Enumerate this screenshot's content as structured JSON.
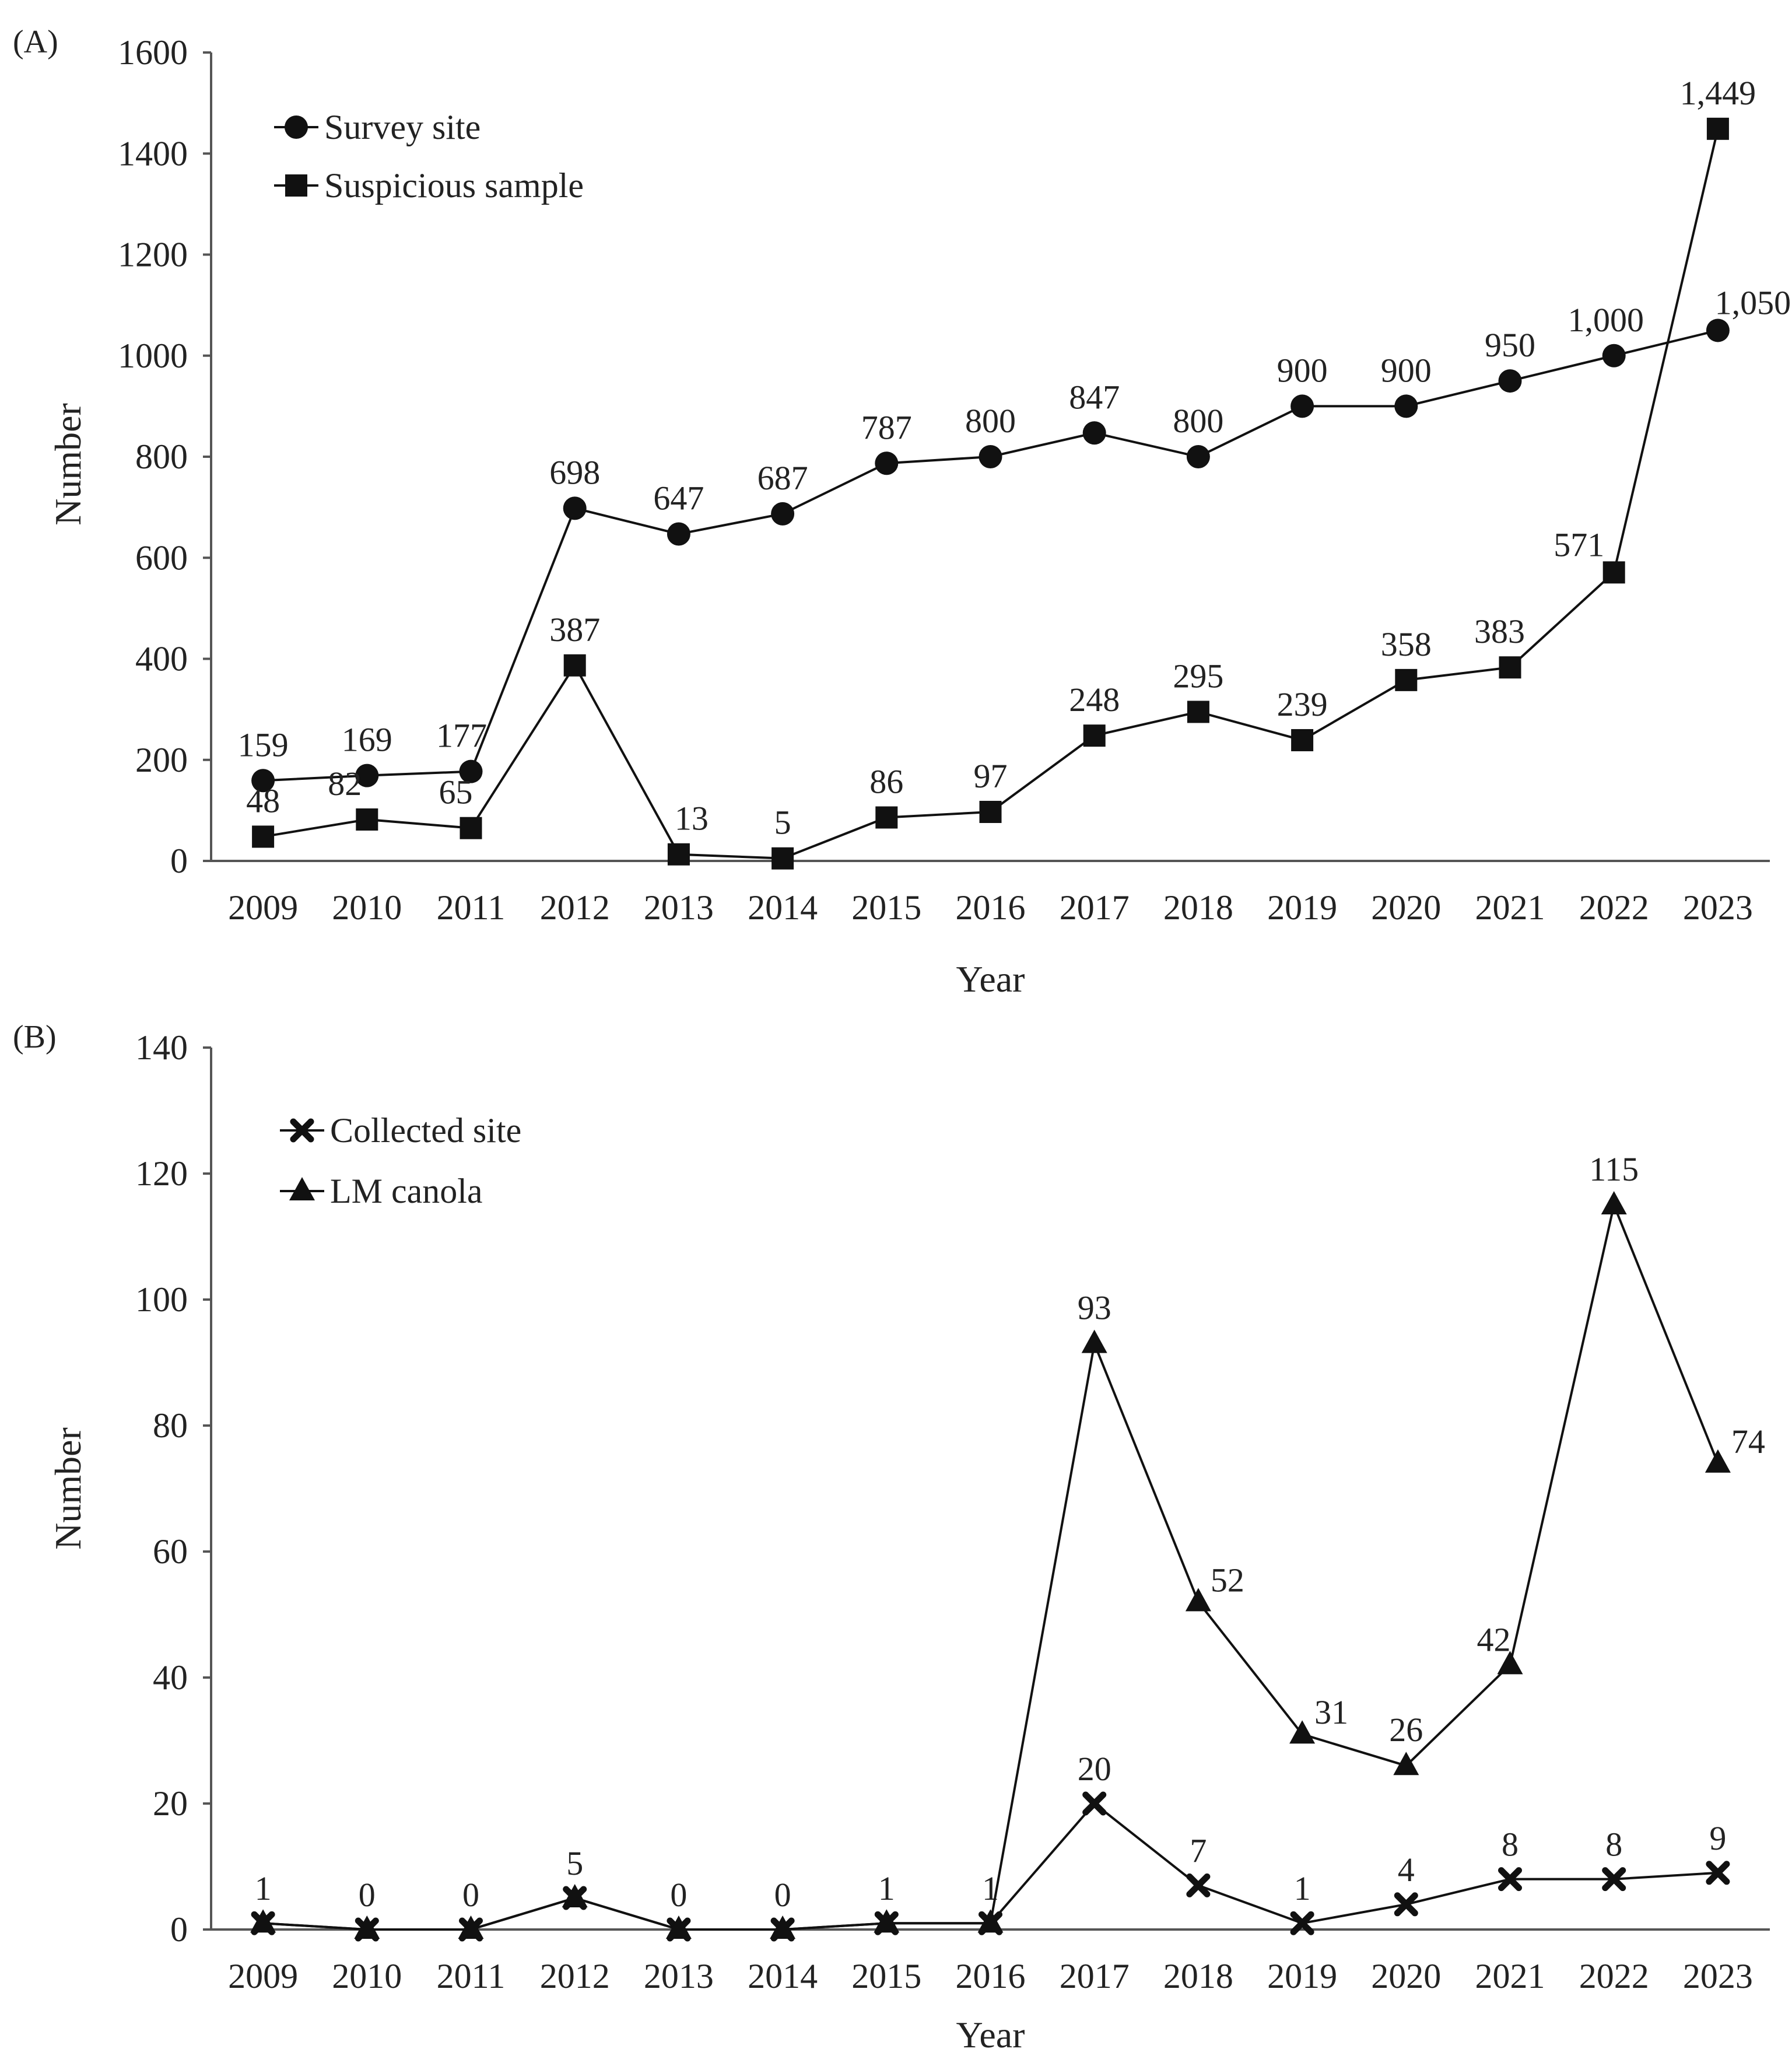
{
  "chart_data": [
    {
      "panel_label": "(A)",
      "type": "line",
      "title": "",
      "xlabel": "Year",
      "ylabel": "Number",
      "ylim": [
        0,
        1600
      ],
      "y_ticks": [
        "0",
        "200",
        "400",
        "600",
        "800",
        "1000",
        "1200",
        "1400",
        "1600"
      ],
      "categories": [
        "2009",
        "2010",
        "2011",
        "2012",
        "2013",
        "2014",
        "2015",
        "2016",
        "2017",
        "2018",
        "2019",
        "2020",
        "2021",
        "2022",
        "2023"
      ],
      "legend_position": "top-left",
      "series": [
        {
          "name": "Survey site",
          "marker": "circle",
          "values": [
            159,
            169,
            177,
            698,
            647,
            687,
            787,
            800,
            847,
            800,
            900,
            900,
            950,
            1000,
            1050
          ],
          "labels": [
            "159",
            "169",
            "177",
            "698",
            "647",
            "687",
            "787",
            "800",
            "847",
            "800",
            "900",
            "900",
            "950",
            "1,000",
            "1,050"
          ]
        },
        {
          "name": "Suspicious sample",
          "marker": "square",
          "values": [
            48,
            82,
            65,
            387,
            13,
            5,
            86,
            97,
            248,
            295,
            239,
            358,
            383,
            571,
            1449
          ],
          "labels": [
            "48",
            "82",
            "65",
            "387",
            "13",
            "5",
            "86",
            "97",
            "248",
            "295",
            "239",
            "358",
            "383",
            "571",
            "1,449"
          ]
        }
      ]
    },
    {
      "panel_label": "(B)",
      "type": "line",
      "title": "",
      "xlabel": "Year",
      "ylabel": "Number",
      "ylim": [
        0,
        140
      ],
      "y_ticks": [
        "0",
        "20",
        "40",
        "60",
        "80",
        "100",
        "120",
        "140"
      ],
      "categories": [
        "2009",
        "2010",
        "2011",
        "2012",
        "2013",
        "2014",
        "2015",
        "2016",
        "2017",
        "2018",
        "2019",
        "2020",
        "2021",
        "2022",
        "2023"
      ],
      "legend_position": "top-left",
      "series": [
        {
          "name": "Collected site",
          "marker": "x",
          "values": [
            1,
            0,
            0,
            5,
            0,
            0,
            1,
            1,
            20,
            7,
            1,
            4,
            8,
            8,
            9
          ],
          "labels": [
            "1",
            "0",
            "0",
            "5",
            "0",
            "0",
            "1",
            "1",
            "20",
            "7",
            "1",
            "4",
            "8",
            "8",
            "9"
          ]
        },
        {
          "name": "LM canola",
          "marker": "triangle",
          "values": [
            1,
            0,
            0,
            5,
            0,
            0,
            1,
            1,
            93,
            52,
            31,
            26,
            42,
            115,
            74
          ],
          "labels": [
            "",
            "",
            "",
            "",
            "",
            "",
            "",
            "",
            "93",
            "52",
            "31",
            "26",
            "42",
            "115",
            "74"
          ]
        }
      ]
    }
  ]
}
